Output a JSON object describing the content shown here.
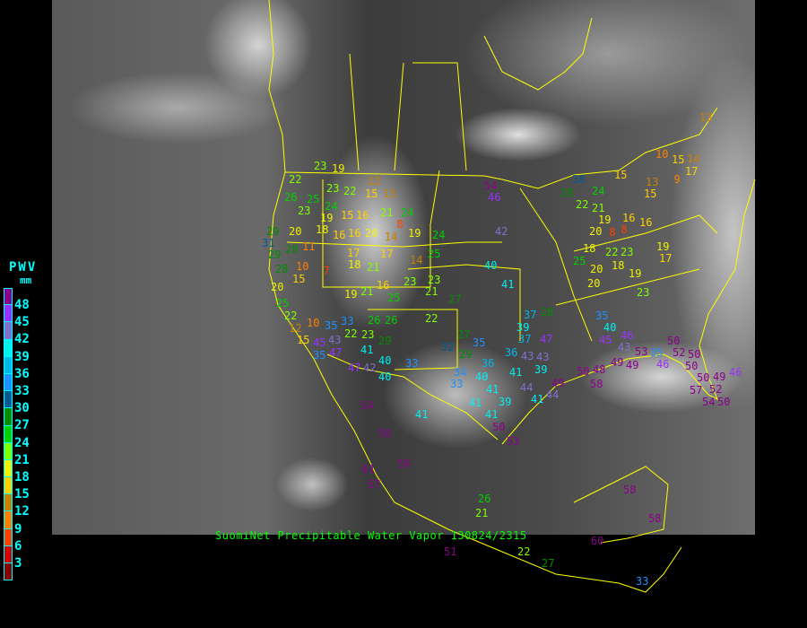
{
  "title": "SuomiNet Precipitable Water Vapor  130824/2315",
  "legend": {
    "title": "PWV",
    "unit": "mm",
    "ticks": [
      "48",
      "45",
      "42",
      "39",
      "36",
      "33",
      "30",
      "27",
      "24",
      "21",
      "18",
      "15",
      "12",
      "9",
      "6",
      "3"
    ],
    "colors": [
      "#8c008c",
      "#9a30ff",
      "#8070d0",
      "#00f0f0",
      "#00b8e8",
      "#1e90ff",
      "#005a96",
      "#008c00",
      "#00d000",
      "#80ff00",
      "#f0f000",
      "#ffd000",
      "#c88000",
      "#ff8000",
      "#ff4000",
      "#d40000",
      "#8b0000"
    ]
  },
  "border_color": "#ffff00",
  "stations": [
    "23",
    "19",
    "22",
    "23",
    "22",
    "26",
    "25",
    "23",
    "24",
    "19",
    "15",
    "18",
    "16",
    "20",
    "29",
    "31",
    "29",
    "28",
    "11",
    "10",
    "7",
    "15",
    "12",
    "15",
    "13",
    "21",
    "24",
    "8",
    "16",
    "16",
    "20",
    "14",
    "19",
    "24",
    "17",
    "18",
    "21",
    "17",
    "14",
    "25",
    "16",
    "23",
    "23",
    "21",
    "19",
    "21",
    "25",
    "27",
    "26",
    "26",
    "22",
    "22",
    "23",
    "41",
    "29",
    "40",
    "47",
    "42",
    "40",
    "33",
    "27",
    "29",
    "32",
    "35",
    "36",
    "34",
    "33",
    "40",
    "41",
    "44",
    "41",
    "39",
    "43",
    "43",
    "39",
    "37",
    "37",
    "47",
    "36",
    "28",
    "35",
    "40",
    "45",
    "46",
    "43",
    "50",
    "52",
    "50",
    "53",
    "35",
    "46",
    "50",
    "50",
    "49",
    "46",
    "52",
    "57",
    "54",
    "50",
    "58",
    "50",
    "48",
    "49",
    "49",
    "49",
    "44",
    "41",
    "39",
    "41",
    "41",
    "50",
    "53",
    "54",
    "58",
    "61",
    "57",
    "59",
    "41",
    "26",
    "21",
    "22",
    "27",
    "33",
    "58",
    "58",
    "60",
    "51",
    "54",
    "46",
    "42",
    "40",
    "41",
    "30",
    "28",
    "24",
    "22",
    "21",
    "19",
    "20",
    "8",
    "8",
    "16",
    "16",
    "15",
    "10",
    "15",
    "14",
    "17",
    "9",
    "15",
    "13",
    "13",
    "18",
    "25",
    "22",
    "23",
    "20",
    "18",
    "19",
    "20",
    "19",
    "17",
    "23",
    "22",
    "10",
    "12",
    "15",
    "35",
    "33",
    "43",
    "45",
    "35",
    "47",
    "20",
    "28",
    "25"
  ]
}
